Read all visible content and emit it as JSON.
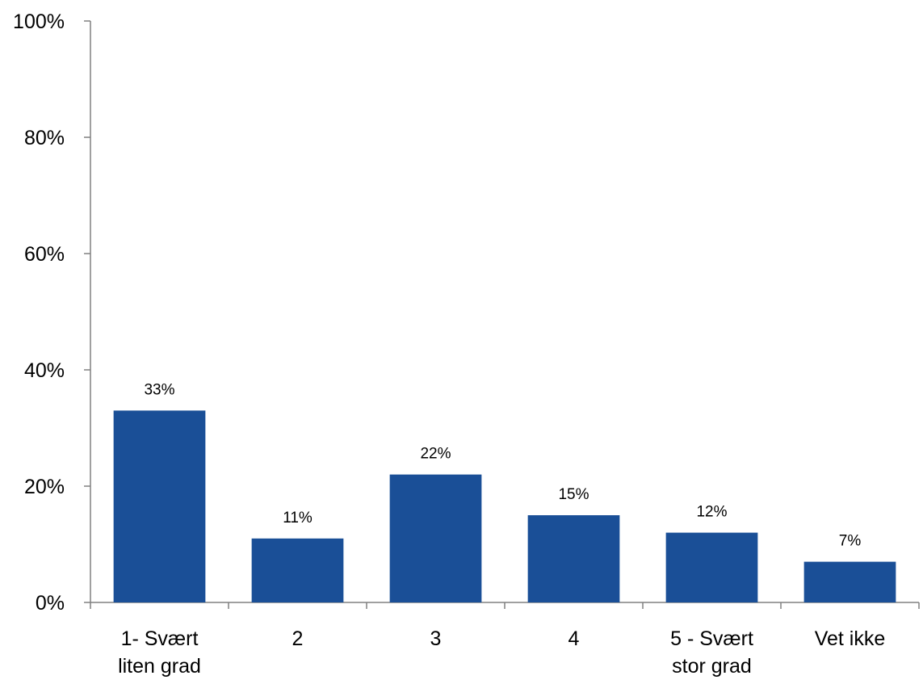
{
  "chart_data": {
    "type": "bar",
    "title": "",
    "xlabel": "",
    "ylabel": "",
    "categories": [
      [
        "1- Svært",
        "liten grad"
      ],
      [
        "2"
      ],
      [
        "3"
      ],
      [
        "4"
      ],
      [
        "5 - Svært",
        "stor grad"
      ],
      [
        "Vet ikke"
      ]
    ],
    "values": [
      33,
      11,
      22,
      15,
      12,
      7
    ],
    "data_labels": [
      "33%",
      "11%",
      "22%",
      "15%",
      "12%",
      "7%"
    ],
    "ylim": [
      0,
      100
    ],
    "yticks": [
      0,
      20,
      40,
      60,
      80,
      100
    ],
    "ytick_labels": [
      "0%",
      "20%",
      "40%",
      "60%",
      "80%",
      "100%"
    ],
    "grid": false,
    "legend": "none",
    "bar_color": "#1a4f97"
  }
}
